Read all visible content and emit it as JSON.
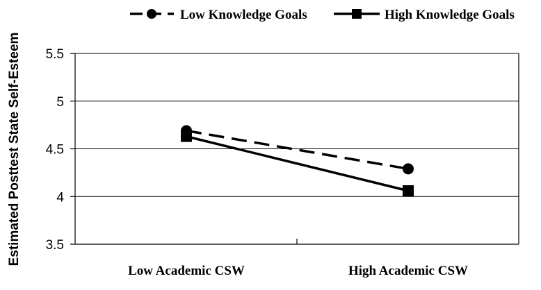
{
  "chart_data": {
    "type": "line",
    "categories": [
      "Low Academic CSW",
      "High Academic CSW"
    ],
    "ylabel": "Estimated Posttest State Self-Esteem",
    "xlabel": "",
    "ylim": [
      3.5,
      5.5
    ],
    "yticks": [
      "5.5",
      "5",
      "4.5",
      "4",
      "3.5"
    ],
    "grid": true,
    "legend_position": "top",
    "series": [
      {
        "name": "Low Knowledge Goals",
        "values": [
          4.69,
          4.29
        ],
        "line_style": "dashed",
        "marker": "circle",
        "color": "#000000"
      },
      {
        "name": "High Knowledge Goals",
        "values": [
          4.63,
          4.06
        ],
        "line_style": "solid",
        "marker": "square",
        "color": "#000000"
      }
    ]
  }
}
